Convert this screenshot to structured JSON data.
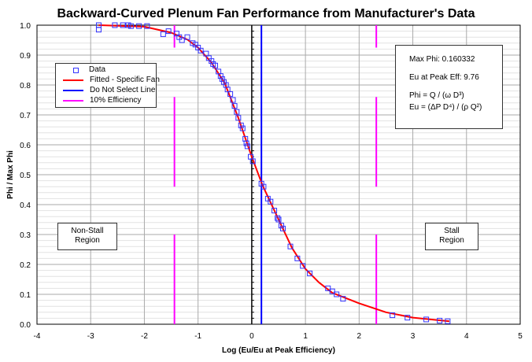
{
  "chart_data": {
    "type": "scatter",
    "title": "Backward-Curved Plenum Fan Performance from Manufacturer's Data",
    "xlabel": "Log (Eu/Eu at Peak Efficiency)",
    "ylabel": "Phi / Max Phi",
    "xlim": [
      -4,
      5
    ],
    "ylim": [
      0,
      1
    ],
    "xticks": [
      "-4",
      "-3",
      "-2",
      "-1",
      "0",
      "1",
      "2",
      "3",
      "4",
      "5"
    ],
    "yticks": [
      "0.0",
      "0.1",
      "0.2",
      "0.3",
      "0.4",
      "0.5",
      "0.6",
      "0.7",
      "0.8",
      "0.9",
      "1.0"
    ],
    "grid": true,
    "legend_position": "upper-left",
    "legend": [
      "Data",
      "Fitted - Specific Fan",
      "Do Not Select Line",
      "10% Efficiency"
    ],
    "colors": {
      "data": "#3333ff",
      "fitted": "#ff0000",
      "do_not_select": "#0000ff",
      "efficiency": "#ff00ff"
    },
    "series": [
      {
        "name": "Data",
        "marker": "square",
        "points": [
          [
            -2.85,
            1.0
          ],
          [
            -2.85,
            0.985
          ],
          [
            -2.55,
            1.0
          ],
          [
            -2.4,
            1.0
          ],
          [
            -2.3,
            1.0
          ],
          [
            -2.25,
            0.997
          ],
          [
            -2.1,
            0.997
          ],
          [
            -1.95,
            0.997
          ],
          [
            -1.65,
            0.97
          ],
          [
            -1.55,
            0.98
          ],
          [
            -1.4,
            0.972
          ],
          [
            -1.35,
            0.96
          ],
          [
            -1.3,
            0.95
          ],
          [
            -1.2,
            0.96
          ],
          [
            -1.1,
            0.94
          ],
          [
            -1.05,
            0.935
          ],
          [
            -1.0,
            0.925
          ],
          [
            -0.95,
            0.915
          ],
          [
            -0.85,
            0.905
          ],
          [
            -0.8,
            0.89
          ],
          [
            -0.75,
            0.88
          ],
          [
            -0.72,
            0.87
          ],
          [
            -0.68,
            0.865
          ],
          [
            -0.62,
            0.845
          ],
          [
            -0.58,
            0.83
          ],
          [
            -0.55,
            0.82
          ],
          [
            -0.52,
            0.81
          ],
          [
            -0.48,
            0.8
          ],
          [
            -0.45,
            0.785
          ],
          [
            -0.4,
            0.77
          ],
          [
            -0.35,
            0.75
          ],
          [
            -0.32,
            0.73
          ],
          [
            -0.28,
            0.71
          ],
          [
            -0.25,
            0.69
          ],
          [
            -0.2,
            0.665
          ],
          [
            -0.17,
            0.655
          ],
          [
            -0.12,
            0.62
          ],
          [
            -0.1,
            0.605
          ],
          [
            -0.08,
            0.595
          ],
          [
            -0.02,
            0.56
          ],
          [
            0.02,
            0.545
          ],
          [
            0.18,
            0.47
          ],
          [
            0.22,
            0.46
          ],
          [
            0.3,
            0.42
          ],
          [
            0.35,
            0.41
          ],
          [
            0.42,
            0.38
          ],
          [
            0.48,
            0.355
          ],
          [
            0.5,
            0.35
          ],
          [
            0.55,
            0.33
          ],
          [
            0.58,
            0.32
          ],
          [
            0.72,
            0.26
          ],
          [
            0.85,
            0.22
          ],
          [
            0.95,
            0.195
          ],
          [
            1.08,
            0.17
          ],
          [
            1.42,
            0.12
          ],
          [
            1.5,
            0.11
          ],
          [
            1.58,
            0.1
          ],
          [
            1.7,
            0.085
          ],
          [
            2.62,
            0.03
          ],
          [
            2.9,
            0.022
          ],
          [
            3.25,
            0.016
          ],
          [
            3.5,
            0.012
          ],
          [
            3.65,
            0.01
          ]
        ]
      },
      {
        "name": "Fitted - Specific Fan",
        "points": [
          [
            -2.85,
            1.0
          ],
          [
            -2.0,
            0.995
          ],
          [
            -1.5,
            0.975
          ],
          [
            -1.2,
            0.952
          ],
          [
            -1.0,
            0.925
          ],
          [
            -0.75,
            0.875
          ],
          [
            -0.5,
            0.805
          ],
          [
            -0.25,
            0.69
          ],
          [
            0,
            0.56
          ],
          [
            0.2,
            0.465
          ],
          [
            0.5,
            0.35
          ],
          [
            0.75,
            0.255
          ],
          [
            1.0,
            0.185
          ],
          [
            1.25,
            0.14
          ],
          [
            1.5,
            0.105
          ],
          [
            2.0,
            0.07
          ],
          [
            2.5,
            0.04
          ],
          [
            3.0,
            0.022
          ],
          [
            3.68,
            0.01
          ]
        ]
      },
      {
        "name": "Do Not Select Line",
        "x": 0.18
      },
      {
        "name": "10% Efficiency",
        "x": [
          -1.44,
          2.32
        ],
        "segments": [
          [
            0.925,
            1.0
          ],
          [
            0.46,
            0.76
          ],
          [
            0,
            0.3
          ]
        ]
      }
    ],
    "annotations": {
      "max_phi": "Max Phi: 0.160332",
      "eu_peak": "Eu at Peak Eff: 9.76",
      "phi_formula": "Phi = Q / (ω D³)",
      "eu_formula": "Eu = (ΔP D⁴) / (ρ Q²)",
      "non_stall": [
        "Non-Stall",
        "Region"
      ],
      "stall": [
        "Stall",
        "Region"
      ]
    }
  }
}
